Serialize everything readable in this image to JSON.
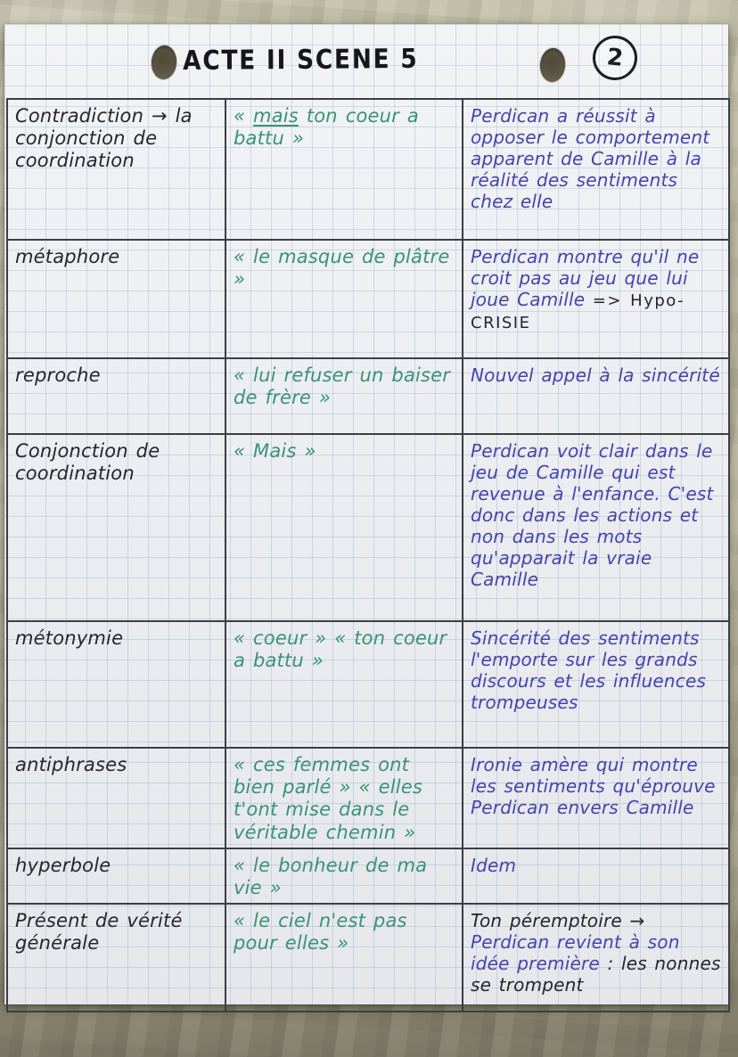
{
  "page": {
    "title": "ACTE II SCENE 5",
    "page_number": "2"
  },
  "ink_colors": {
    "black": "#26262b",
    "green": "#3a9278",
    "blue": "#4643ac",
    "line": "#3c3e45"
  },
  "table": {
    "rows": [
      {
        "device": "Contradiction → la conjonction de coordination",
        "quote_open": "« ",
        "quote_underlined": "mais",
        "quote_rest": " ton coeur a battu »",
        "analysis": "Perdican a réussit à opposer le comportement apparent de Camille à la réalité des sentiments chez elle"
      },
      {
        "device": "métaphore",
        "quote": "« le masque de plâtre »",
        "analysis": "Perdican montre qu'il ne croit pas au jeu que lui joue Camille ",
        "analysis_black": "=> Hypo-CRISIE"
      },
      {
        "device": "reproche",
        "quote": "« lui refuser un baiser de frère »",
        "analysis": "Nouvel appel à la sincérité"
      },
      {
        "device": "Conjonction de coordination",
        "quote": "« Mais »",
        "analysis": "Perdican voit clair dans le jeu de Camille qui est revenue à l'enfance. C'est donc dans les actions et non dans les mots qu'apparait la vraie Camille"
      },
      {
        "device": "métonymie",
        "quote": "« coeur » « ton coeur a battu »",
        "analysis": "Sincérité des sentiments l'emporte sur les grands discours et les influences trompeuses"
      },
      {
        "device": "antiphrases",
        "quote": "« ces femmes ont bien parlé » « elles t'ont mise dans le véritable chemin »",
        "analysis": "Ironie amère qui montre les sentiments qu'éprouve Perdican envers Camille"
      },
      {
        "device": "hyperbole",
        "quote": "« le bonheur de ma vie »",
        "analysis": "Idem"
      },
      {
        "device": "Présent de vérité générale",
        "quote": "« le ciel n'est pas pour elles »",
        "analysis_black_lead": "Ton péremptoire → ",
        "analysis": "Perdican revient à son idée première ",
        "analysis_black": ": les nonnes se trompent"
      }
    ]
  }
}
